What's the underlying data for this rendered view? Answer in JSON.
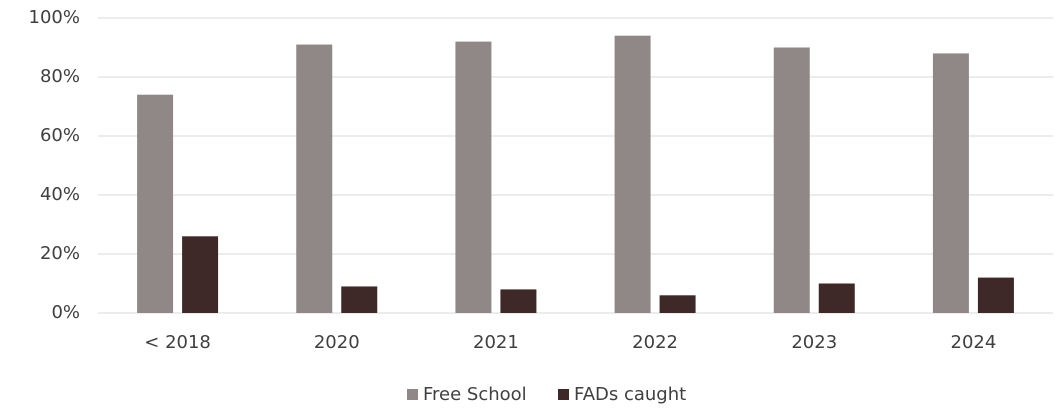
{
  "chart_data": {
    "type": "bar",
    "categories": [
      "< 2018",
      "2020",
      "2021",
      "2022",
      "2023",
      "2024"
    ],
    "series": [
      {
        "name": "Free School",
        "color": "#8f8886",
        "values": [
          74,
          91,
          92,
          94,
          90,
          88
        ]
      },
      {
        "name": "FADs caught",
        "color": "#3f2828",
        "values": [
          26,
          9,
          8,
          6,
          10,
          12
        ]
      }
    ],
    "ylim": [
      0,
      100
    ],
    "yticks": [
      {
        "value": 0,
        "label": "0%"
      },
      {
        "value": 20,
        "label": "20%"
      },
      {
        "value": 40,
        "label": "40%"
      },
      {
        "value": 60,
        "label": "60%"
      },
      {
        "value": 80,
        "label": "80%"
      },
      {
        "value": 100,
        "label": "100%"
      }
    ],
    "grid": true,
    "legend": "bottom"
  }
}
